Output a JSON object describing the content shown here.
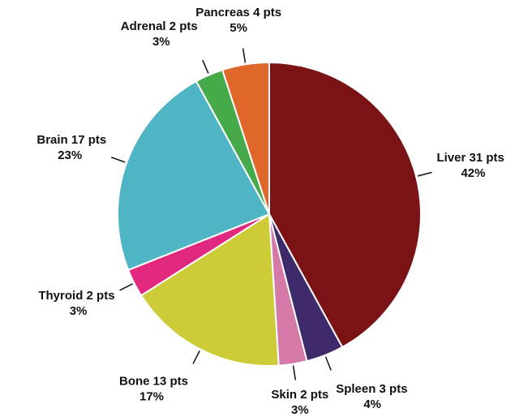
{
  "chart_data": {
    "type": "pie",
    "categories": [
      "Liver 31 pts",
      "Spleen 3 pts",
      "Skin 2 pts",
      "Bone 13 pts",
      "Thyroid 2 pts",
      "Brain 17 pts",
      "Adrenal 2 pts",
      "Pancreas 4 pts"
    ],
    "values": [
      42,
      4,
      3,
      17,
      3,
      23,
      3,
      5
    ],
    "value_labels": [
      "42%",
      "4%",
      "3%",
      "17%",
      "3%",
      "23%",
      "3%",
      "5%"
    ],
    "colors": [
      "#7a1216",
      "#3e2a6a",
      "#d479a8",
      "#cdcc38",
      "#e0287e",
      "#4fb4c3",
      "#46a94a",
      "#e0672a"
    ]
  }
}
